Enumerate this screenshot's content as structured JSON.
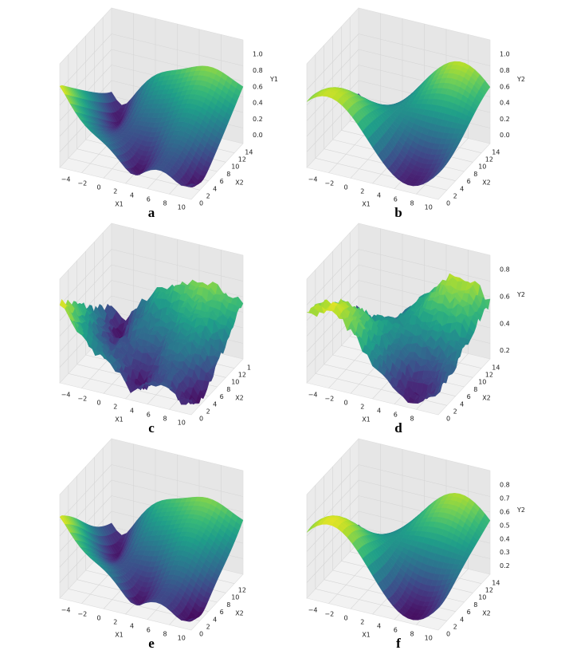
{
  "panels": [
    {
      "label": "a",
      "x1_label": "X1",
      "x2_label": "X2",
      "y_label": "Y1",
      "x1_ticks": [
        "−4",
        "−2",
        "0",
        "2",
        "4",
        "6",
        "8",
        "10"
      ],
      "x2_ticks": [
        "0",
        "2",
        "4",
        "6",
        "8",
        "10",
        "12",
        "14"
      ],
      "y_ticks": [
        "0.0",
        "0.2",
        "0.4",
        "0.6",
        "0.8",
        "1.0"
      ]
    },
    {
      "label": "b",
      "x1_label": "X1",
      "x2_label": "X2",
      "y_label": "Y2",
      "x1_ticks": [
        "−4",
        "−2",
        "0",
        "2",
        "4",
        "6",
        "8",
        "10"
      ],
      "x2_ticks": [
        "0",
        "2",
        "4",
        "6",
        "8",
        "10",
        "12",
        "14"
      ],
      "y_ticks": [
        "0.0",
        "0.2",
        "0.4",
        "0.6",
        "0.8",
        "1.0"
      ]
    },
    {
      "label": "c",
      "x1_label": "X1",
      "x2_label": "X2",
      "x1_ticks": [
        "−4",
        "−2",
        "0",
        "2",
        "4",
        "6",
        "8",
        "10"
      ],
      "x2_ticks": [
        "0",
        "2",
        "4",
        "6",
        "8",
        "10",
        "12",
        "1"
      ]
    },
    {
      "label": "d",
      "x1_label": "X1",
      "x2_label": "X2",
      "y_label": "Y2",
      "x1_ticks": [
        "−4",
        "−2",
        "0",
        "2",
        "4",
        "6",
        "8"
      ],
      "x2_ticks": [
        "0",
        "2",
        "4",
        "6",
        "8",
        "10",
        "12",
        "14"
      ],
      "y_ticks": [
        "0.2",
        "0.4",
        "0.6",
        "0.8"
      ]
    },
    {
      "label": "e",
      "x1_label": "X1",
      "x2_label": "X2",
      "x1_ticks": [
        "−4",
        "−2",
        "0",
        "2",
        "4",
        "6",
        "8",
        "10"
      ],
      "x2_ticks": [
        "0",
        "2",
        "4",
        "6",
        "8",
        "10",
        "12"
      ]
    },
    {
      "label": "f",
      "x1_label": "X1",
      "x2_label": "X2",
      "y_label": "Y2",
      "x1_ticks": [
        "−4",
        "−2",
        "0",
        "2",
        "4",
        "6",
        "8",
        "10"
      ],
      "x2_ticks": [
        "0",
        "2",
        "4",
        "6",
        "8",
        "10",
        "12",
        "14"
      ],
      "y_ticks": [
        "0.2",
        "0.3",
        "0.4",
        "0.5",
        "0.6",
        "0.7",
        "0.8"
      ]
    }
  ]
}
